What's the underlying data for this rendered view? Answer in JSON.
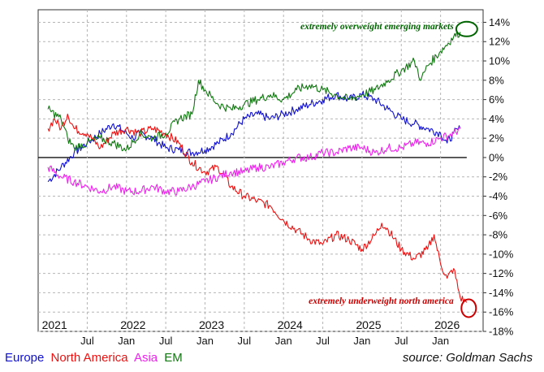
{
  "chart_data": {
    "type": "line",
    "y_unit": "%",
    "ylim": [
      -18,
      15
    ],
    "y_ticks": [
      "14%",
      "12%",
      "10%",
      "8%",
      "6%",
      "4%",
      "2%",
      "0%",
      "-2%",
      "-4%",
      "-6%",
      "-8%",
      "-10%",
      "-12%",
      "-14%",
      "-16%",
      "-18%"
    ],
    "x_month_labels": [
      "Jul",
      "Jan",
      "Jul",
      "Jan",
      "Jul",
      "Jan",
      "Jul",
      "Jan",
      "Jul",
      "Jan"
    ],
    "x_year_labels": [
      "2021",
      "2022",
      "2023",
      "2024",
      "2025",
      "2026"
    ],
    "x_unit": "months since Jan 2021",
    "annotations": [
      {
        "text": "extremely overweight emerging markets",
        "color": "#006400"
      },
      {
        "text": "extremely underweight north america",
        "color": "#cc0000"
      }
    ],
    "series": [
      {
        "name": "Europe",
        "color": "#1010d0",
        "points": [
          [
            0,
            -2.5
          ],
          [
            2,
            -1
          ],
          [
            4,
            0.5
          ],
          [
            6,
            1.5
          ],
          [
            8,
            2.5
          ],
          [
            10,
            3.5
          ],
          [
            12,
            2.5
          ],
          [
            13,
            2.0
          ],
          [
            14,
            2.5
          ],
          [
            16,
            2.0
          ],
          [
            18,
            1.0
          ],
          [
            20,
            0.8
          ],
          [
            22,
            0.5
          ],
          [
            24,
            0.8
          ],
          [
            26,
            1.5
          ],
          [
            28,
            2.5
          ],
          [
            30,
            4.0
          ],
          [
            32,
            4.5
          ],
          [
            34,
            4.0
          ],
          [
            36,
            4.5
          ],
          [
            38,
            5.0
          ],
          [
            40,
            5.5
          ],
          [
            42,
            6.0
          ],
          [
            44,
            6.5
          ],
          [
            46,
            6.0
          ],
          [
            48,
            6.5
          ],
          [
            50,
            6.0
          ],
          [
            52,
            5.0
          ],
          [
            54,
            4.0
          ],
          [
            56,
            3.5
          ],
          [
            58,
            3.0
          ],
          [
            60,
            2.5
          ],
          [
            61,
            1.5
          ],
          [
            62,
            2.5
          ],
          [
            63,
            3.0
          ]
        ]
      },
      {
        "name": "North America",
        "color": "#ee1111",
        "points": [
          [
            0,
            3.0
          ],
          [
            1,
            4.0
          ],
          [
            2,
            3.0
          ],
          [
            3,
            4.5
          ],
          [
            4,
            3.0
          ],
          [
            6,
            2.5
          ],
          [
            8,
            1.0
          ],
          [
            10,
            2.5
          ],
          [
            12,
            3.0
          ],
          [
            14,
            2.5
          ],
          [
            16,
            3.0
          ],
          [
            18,
            2.5
          ],
          [
            20,
            1.5
          ],
          [
            22,
            -0.5
          ],
          [
            24,
            -1.5
          ],
          [
            26,
            -1.0
          ],
          [
            28,
            -3.0
          ],
          [
            30,
            -4.0
          ],
          [
            32,
            -4.5
          ],
          [
            34,
            -5.0
          ],
          [
            36,
            -6.5
          ],
          [
            38,
            -7.5
          ],
          [
            40,
            -8.5
          ],
          [
            42,
            -9.0
          ],
          [
            44,
            -8.0
          ],
          [
            46,
            -8.5
          ],
          [
            48,
            -9.5
          ],
          [
            50,
            -8.0
          ],
          [
            51,
            -6.8
          ],
          [
            52,
            -7.5
          ],
          [
            54,
            -9.5
          ],
          [
            56,
            -10.5
          ],
          [
            58,
            -9.5
          ],
          [
            59,
            -8.0
          ],
          [
            60,
            -11.0
          ],
          [
            61,
            -12.5
          ],
          [
            62,
            -11.5
          ],
          [
            63,
            -14.5
          ],
          [
            64,
            -15.0
          ]
        ]
      },
      {
        "name": "Asia",
        "color": "#ee22ee",
        "points": [
          [
            0,
            -1.0
          ],
          [
            2,
            -2.0
          ],
          [
            4,
            -2.5
          ],
          [
            6,
            -3.0
          ],
          [
            8,
            -3.5
          ],
          [
            10,
            -3.0
          ],
          [
            12,
            -3.5
          ],
          [
            14,
            -3.5
          ],
          [
            16,
            -3.0
          ],
          [
            18,
            -3.5
          ],
          [
            20,
            -3.5
          ],
          [
            22,
            -3.0
          ],
          [
            24,
            -2.5
          ],
          [
            26,
            -2.0
          ],
          [
            28,
            -1.5
          ],
          [
            30,
            -1.5
          ],
          [
            32,
            -1.0
          ],
          [
            34,
            -1.0
          ],
          [
            36,
            -0.5
          ],
          [
            38,
            0
          ],
          [
            40,
            0
          ],
          [
            42,
            0.5
          ],
          [
            44,
            0.5
          ],
          [
            46,
            1.0
          ],
          [
            48,
            1.0
          ],
          [
            50,
            0.5
          ],
          [
            52,
            1.0
          ],
          [
            54,
            1.0
          ],
          [
            56,
            1.5
          ],
          [
            58,
            1.5
          ],
          [
            60,
            2.0
          ],
          [
            62,
            2.5
          ],
          [
            63,
            3.0
          ]
        ]
      },
      {
        "name": "EM",
        "color": "#117711",
        "points": [
          [
            0,
            5.0
          ],
          [
            2,
            4.0
          ],
          [
            3,
            2.0
          ],
          [
            4,
            1.0
          ],
          [
            6,
            1.5
          ],
          [
            8,
            2.0
          ],
          [
            10,
            1.5
          ],
          [
            12,
            0.8
          ],
          [
            14,
            2.5
          ],
          [
            16,
            2.0
          ],
          [
            18,
            2.5
          ],
          [
            20,
            4.0
          ],
          [
            22,
            4.5
          ],
          [
            23,
            8.0
          ],
          [
            24,
            7.0
          ],
          [
            26,
            5.5
          ],
          [
            28,
            5.0
          ],
          [
            30,
            5.5
          ],
          [
            32,
            6.0
          ],
          [
            34,
            6.5
          ],
          [
            36,
            6.0
          ],
          [
            38,
            7.0
          ],
          [
            40,
            7.5
          ],
          [
            42,
            7.0
          ],
          [
            44,
            6.5
          ],
          [
            46,
            6.0
          ],
          [
            48,
            6.5
          ],
          [
            50,
            7.0
          ],
          [
            52,
            8.0
          ],
          [
            54,
            9.0
          ],
          [
            56,
            10.0
          ],
          [
            57,
            8.0
          ],
          [
            58,
            9.5
          ],
          [
            60,
            11.0
          ],
          [
            62,
            12.5
          ],
          [
            63,
            13.0
          ]
        ]
      }
    ]
  },
  "legend_items": [
    "Europe",
    "North America",
    "Asia",
    "EM"
  ],
  "source_text": "source: Goldman Sachs"
}
